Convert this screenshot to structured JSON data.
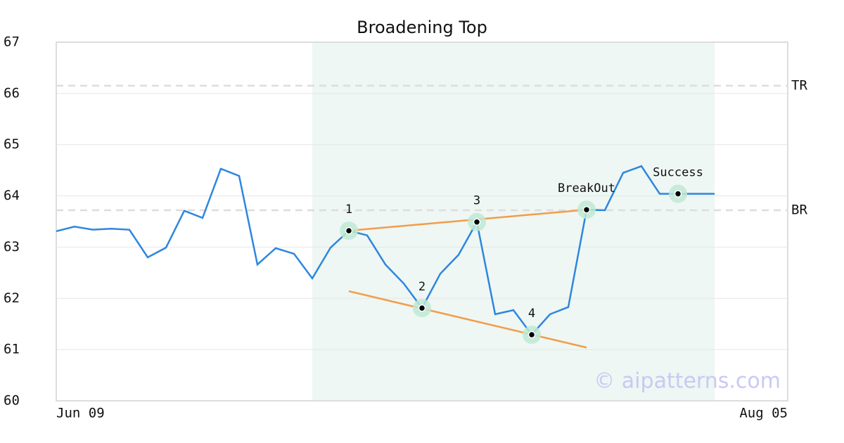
{
  "chart_data": {
    "type": "line",
    "title": "Broadening Top",
    "categories": [
      "Jun 09",
      null,
      null,
      null,
      null,
      null,
      null,
      null,
      null,
      null,
      null,
      null,
      null,
      null,
      null,
      null,
      null,
      null,
      null,
      null,
      null,
      null,
      null,
      null,
      null,
      null,
      null,
      null,
      null,
      null,
      null,
      null,
      null,
      null,
      null,
      null,
      null,
      null,
      null,
      null,
      "Aug 05"
    ],
    "values": [
      63.31,
      63.4,
      63.34,
      63.36,
      63.34,
      62.8,
      62.99,
      63.71,
      63.57,
      64.53,
      64.39,
      62.66,
      62.98,
      62.87,
      62.39,
      62.99,
      63.32,
      63.23,
      62.66,
      62.29,
      61.81,
      62.48,
      62.85,
      63.49,
      61.69,
      61.77,
      61.29,
      61.69,
      61.83,
      63.73,
      63.72,
      64.45,
      64.58,
      64.04,
      64.04,
      64.04,
      64.04,
      null,
      null,
      null,
      null
    ],
    "color": "#2e86de",
    "ylim": [
      60,
      67
    ],
    "yticks": [
      60,
      61,
      62,
      63,
      64,
      65,
      66,
      67
    ],
    "grid": true,
    "highlight": [
      14,
      36
    ],
    "reference_lines": [
      {
        "label": "TR",
        "value": 66.15
      },
      {
        "label": "BR",
        "value": 63.72
      }
    ],
    "trend_lines": [
      {
        "from": 16,
        "to": 29,
        "start": 63.32,
        "end": 63.73
      },
      {
        "from": 16,
        "to": 29,
        "start": 62.14,
        "end": 61.04
      }
    ],
    "trend_color": "#f39c4a",
    "markers": [
      {
        "label": "1",
        "index": 16
      },
      {
        "label": "2",
        "index": 20
      },
      {
        "label": "3",
        "index": 23
      },
      {
        "label": "4",
        "index": 26
      },
      {
        "label": "BreakOut",
        "index": 29
      },
      {
        "label": "Success",
        "index": 34
      }
    ],
    "watermark": "© aipatterns.com"
  }
}
